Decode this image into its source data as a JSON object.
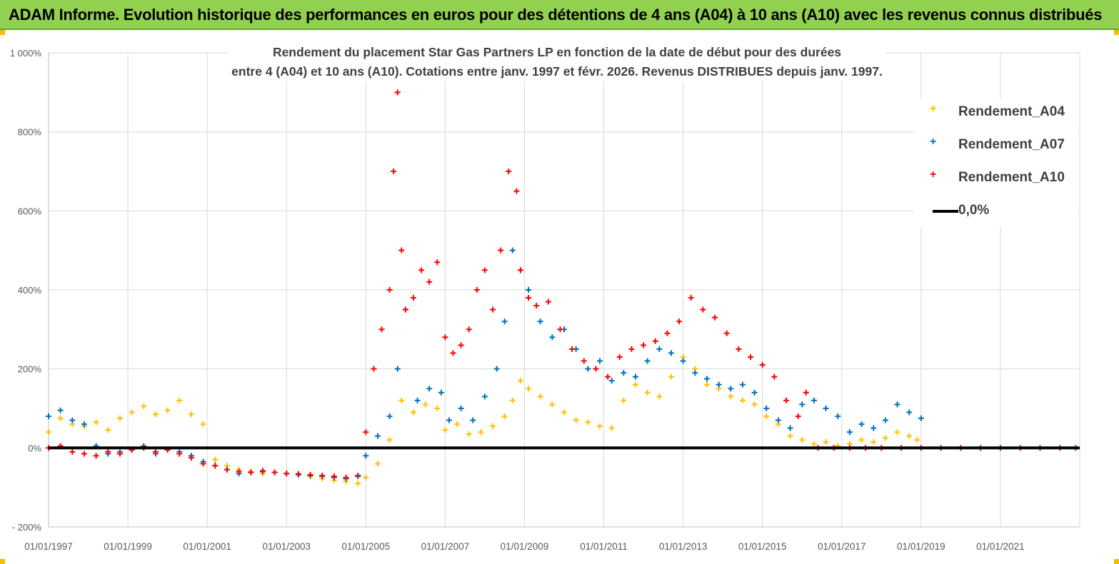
{
  "banner": {
    "title": "ADAM Informe. Evolution historique des performances en euros pour des détentions de 4 ans (A04) à 10 ans (A10) avec les revenus connus distribués"
  },
  "chart_data": {
    "type": "scatter",
    "title_lines": [
      "Rendement du placement Star Gas Partners LP en fonction de la date de début pour des durées",
      "entre 4 (A04) et 10 ans (A10). Cotations entre janv. 1997 et févr. 2026. Revenus DISTRIBUES depuis janv. 1997."
    ],
    "xlim": [
      1997.0,
      2023.0
    ],
    "ylim": [
      -200,
      1000
    ],
    "y_ticks": [
      -200,
      0,
      200,
      400,
      600,
      800,
      1000
    ],
    "y_tick_labels": [
      "- 200%",
      "0%",
      "200%",
      "400%",
      "600%",
      "800%",
      "1 000%"
    ],
    "x_ticks": [
      1997,
      1999,
      2001,
      2003,
      2005,
      2007,
      2009,
      2011,
      2013,
      2015,
      2017,
      2019,
      2021
    ],
    "x_tick_labels": [
      "01/01/1997",
      "01/01/1999",
      "01/01/2001",
      "01/01/2003",
      "01/01/2005",
      "01/01/2007",
      "01/01/2009",
      "01/01/2011",
      "01/01/2013",
      "01/01/2015",
      "01/01/2017",
      "01/01/2019",
      "01/01/2021"
    ],
    "grid": true,
    "legend_position": "top-right",
    "series": [
      {
        "name": "Rendement_A04",
        "color": "#ffc000",
        "marker": "+",
        "x": [
          1997.0,
          1997.3,
          1997.6,
          1997.9,
          1998.2,
          1998.5,
          1998.8,
          1999.1,
          1999.4,
          1999.7,
          2000.0,
          2000.3,
          2000.6,
          2000.9,
          2001.2,
          2001.5,
          2001.8,
          2002.1,
          2002.4,
          2002.7,
          2003.0,
          2003.3,
          2003.6,
          2003.9,
          2004.2,
          2004.5,
          2004.8,
          2005.0,
          2005.3,
          2005.6,
          2005.9,
          2006.2,
          2006.5,
          2006.8,
          2007.0,
          2007.3,
          2007.6,
          2007.9,
          2008.2,
          2008.5,
          2008.7,
          2008.9,
          2009.1,
          2009.4,
          2009.7,
          2010.0,
          2010.3,
          2010.6,
          2010.9,
          2011.2,
          2011.5,
          2011.8,
          2012.1,
          2012.4,
          2012.7,
          2013.0,
          2013.3,
          2013.6,
          2013.9,
          2014.2,
          2014.5,
          2014.8,
          2015.1,
          2015.4,
          2015.7,
          2016.0,
          2016.3,
          2016.6,
          2016.9,
          2017.2,
          2017.5,
          2017.8,
          2018.1,
          2018.4,
          2018.7,
          2018.9
        ],
        "y": [
          40,
          75,
          60,
          55,
          65,
          45,
          75,
          90,
          105,
          85,
          95,
          120,
          85,
          60,
          -30,
          -45,
          -55,
          -60,
          -65,
          -62,
          -65,
          -68,
          -72,
          -78,
          -82,
          -85,
          -90,
          -75,
          -40,
          20,
          120,
          90,
          110,
          100,
          45,
          60,
          35,
          40,
          55,
          80,
          120,
          170,
          150,
          130,
          110,
          90,
          70,
          65,
          55,
          50,
          120,
          160,
          140,
          130,
          180,
          230,
          200,
          160,
          150,
          130,
          120,
          110,
          80,
          60,
          30,
          20,
          10,
          15,
          5,
          10,
          20,
          15,
          25,
          40,
          30,
          20
        ]
      },
      {
        "name": "Rendement_A07",
        "color": "#0070c0",
        "marker": "+",
        "x": [
          1997.0,
          1997.3,
          1997.6,
          1997.9,
          1998.2,
          1998.5,
          1998.8,
          1999.1,
          1999.4,
          1999.7,
          2000.0,
          2000.3,
          2000.6,
          2000.9,
          2001.2,
          2001.5,
          2001.8,
          2002.1,
          2002.4,
          2002.7,
          2003.0,
          2003.3,
          2003.6,
          2003.9,
          2004.2,
          2004.5,
          2004.8,
          2005.0,
          2005.3,
          2005.6,
          2005.8,
          2006.0,
          2006.3,
          2006.6,
          2006.9,
          2007.1,
          2007.4,
          2007.7,
          2008.0,
          2008.3,
          2008.5,
          2008.7,
          2008.9,
          2009.1,
          2009.4,
          2009.7,
          2010.0,
          2010.3,
          2010.6,
          2010.9,
          2011.2,
          2011.5,
          2011.8,
          2012.1,
          2012.4,
          2012.7,
          2013.0,
          2013.3,
          2013.6,
          2013.9,
          2014.2,
          2014.5,
          2014.8,
          2015.1,
          2015.4,
          2015.7,
          2016.0,
          2016.3,
          2016.6,
          2016.9,
          2017.2,
          2017.5,
          2017.8,
          2018.1,
          2018.4,
          2018.7,
          2019.0
        ],
        "y": [
          80,
          95,
          70,
          60,
          5,
          -15,
          -10,
          -5,
          5,
          -15,
          -5,
          -10,
          -20,
          -35,
          -45,
          -55,
          -65,
          -62,
          -60,
          -62,
          -65,
          -68,
          -70,
          -72,
          -75,
          -78,
          -72,
          -20,
          30,
          80,
          200,
          350,
          120,
          150,
          140,
          70,
          100,
          70,
          130,
          200,
          320,
          500,
          450,
          400,
          320,
          280,
          300,
          250,
          200,
          220,
          170,
          190,
          180,
          220,
          250,
          240,
          220,
          190,
          175,
          160,
          150,
          160,
          140,
          100,
          70,
          50,
          110,
          120,
          100,
          80,
          40,
          60,
          50,
          70,
          110,
          90,
          75
        ]
      },
      {
        "name": "Rendement_A10",
        "color": "#ff0000",
        "marker": "+",
        "x": [
          1997.0,
          1997.3,
          1997.6,
          1997.9,
          1998.2,
          1998.5,
          1998.8,
          1999.1,
          1999.4,
          1999.7,
          2000.0,
          2000.3,
          2000.6,
          2000.9,
          2001.2,
          2001.5,
          2001.8,
          2002.1,
          2002.4,
          2002.7,
          2003.0,
          2003.3,
          2003.6,
          2003.9,
          2004.2,
          2004.5,
          2004.8,
          2005.0,
          2005.2,
          2005.4,
          2005.6,
          2005.7,
          2005.8,
          2005.9,
          2006.0,
          2006.2,
          2006.4,
          2006.6,
          2006.8,
          2007.0,
          2007.2,
          2007.4,
          2007.6,
          2007.8,
          2008.0,
          2008.2,
          2008.4,
          2008.6,
          2008.8,
          2008.9,
          2009.1,
          2009.3,
          2009.6,
          2009.9,
          2010.2,
          2010.5,
          2010.8,
          2011.1,
          2011.4,
          2011.7,
          2012.0,
          2012.3,
          2012.6,
          2012.9,
          2013.2,
          2013.5,
          2013.8,
          2014.1,
          2014.4,
          2014.7,
          2015.0,
          2015.3,
          2015.6,
          2015.9,
          2016.1,
          2016.4,
          2016.8,
          2017.2,
          2017.6,
          2018.0,
          2018.5,
          2019.0,
          2019.5,
          2020.0,
          2020.5,
          2021.0,
          2021.5,
          2022.0,
          2022.5,
          2022.9
        ],
        "y": [
          0,
          5,
          -10,
          -15,
          -20,
          -10,
          -15,
          -5,
          0,
          -10,
          -5,
          -15,
          -25,
          -40,
          -45,
          -55,
          -60,
          -62,
          -58,
          -62,
          -65,
          -66,
          -68,
          -70,
          -72,
          -75,
          -70,
          40,
          200,
          300,
          400,
          700,
          900,
          500,
          350,
          380,
          450,
          420,
          470,
          280,
          240,
          260,
          300,
          400,
          450,
          350,
          500,
          700,
          650,
          450,
          380,
          360,
          370,
          300,
          250,
          220,
          200,
          180,
          230,
          250,
          260,
          270,
          290,
          320,
          380,
          350,
          330,
          290,
          250,
          230,
          210,
          180,
          120,
          80,
          140,
          0,
          0,
          0,
          0,
          0,
          0,
          0,
          0,
          0,
          0,
          0,
          0,
          0,
          0,
          0
        ]
      },
      {
        "name": "0,0%",
        "color": "#000000",
        "marker": "line",
        "x": [
          1997.0,
          2023.0
        ],
        "y": [
          0,
          0
        ]
      }
    ]
  }
}
